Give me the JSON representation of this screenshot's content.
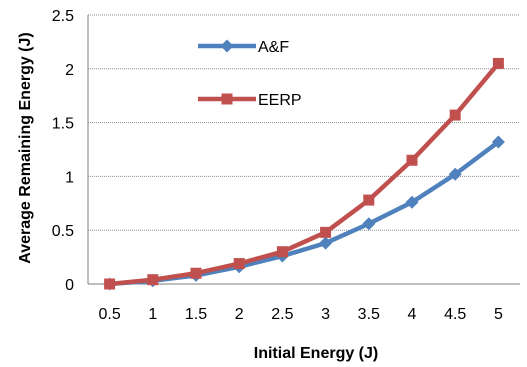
{
  "chart_data": {
    "type": "line",
    "x": [
      0.5,
      1,
      1.5,
      2,
      2.5,
      3,
      3.5,
      4,
      4.5,
      5
    ],
    "x_tick_labels": [
      "0.5",
      "1",
      "1.5",
      "2",
      "2.5",
      "3",
      "3.5",
      "4",
      "4.5",
      "5"
    ],
    "y_tick_labels": [
      "0",
      "0.5",
      "1",
      "1.5",
      "2",
      "2.5"
    ],
    "ylim": [
      0,
      2.5
    ],
    "xlabel": "Initial Energy (J)",
    "ylabel": "Average Remaining Energy (J)",
    "grid": "horizontal",
    "legend_position": "top-left",
    "series": [
      {
        "name": "A&F",
        "color": "#4F81BD",
        "marker": "diamond",
        "values": [
          0.0,
          0.03,
          0.08,
          0.16,
          0.26,
          0.38,
          0.56,
          0.76,
          1.02,
          1.32
        ]
      },
      {
        "name": "EERP",
        "color": "#C0504D",
        "marker": "square",
        "values": [
          0.0,
          0.04,
          0.1,
          0.19,
          0.3,
          0.48,
          0.78,
          1.15,
          1.57,
          2.05
        ]
      }
    ]
  }
}
